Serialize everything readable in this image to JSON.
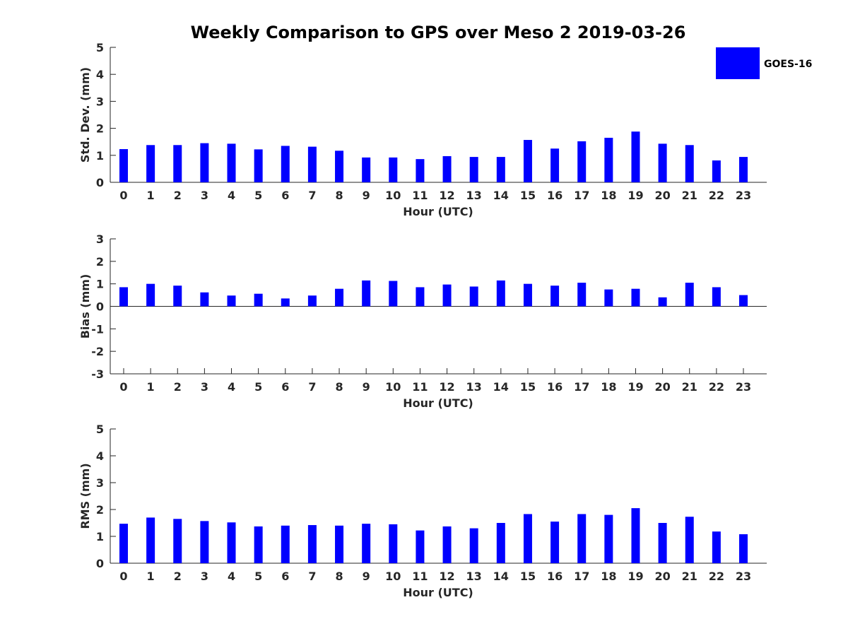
{
  "title": "Weekly Comparison to GPS over Meso 2 2019-03-26",
  "legend": {
    "label": "GOES-16",
    "color": "#0000ff",
    "position": "top-right"
  },
  "chart_data": [
    {
      "type": "bar",
      "series": [
        {
          "name": "GOES-16",
          "values": [
            1.23,
            1.38,
            1.38,
            1.45,
            1.43,
            1.22,
            1.35,
            1.32,
            1.17,
            0.92,
            0.92,
            0.86,
            0.97,
            0.94,
            0.94,
            1.57,
            1.25,
            1.52,
            1.65,
            1.88,
            1.43,
            1.38,
            0.81,
            0.94
          ]
        }
      ],
      "categories": [
        "0",
        "1",
        "2",
        "3",
        "4",
        "5",
        "6",
        "7",
        "8",
        "9",
        "10",
        "11",
        "12",
        "13",
        "14",
        "15",
        "16",
        "17",
        "18",
        "19",
        "20",
        "21",
        "22",
        "23"
      ],
      "xlabel": "Hour (UTC)",
      "ylabel": "Std. Dev. (mm)",
      "ylim": [
        0,
        5
      ],
      "yticks": [
        "0",
        "1",
        "2",
        "3",
        "4",
        "5"
      ],
      "color": "#0000ff"
    },
    {
      "type": "bar",
      "series": [
        {
          "name": "GOES-16",
          "values": [
            0.85,
            1.0,
            0.92,
            0.62,
            0.48,
            0.56,
            0.35,
            0.48,
            0.78,
            1.15,
            1.13,
            0.85,
            0.97,
            0.88,
            1.15,
            1.0,
            0.92,
            1.05,
            0.75,
            0.78,
            0.4,
            1.05,
            0.85,
            0.5
          ]
        }
      ],
      "categories": [
        "0",
        "1",
        "2",
        "3",
        "4",
        "5",
        "6",
        "7",
        "8",
        "9",
        "10",
        "11",
        "12",
        "13",
        "14",
        "15",
        "16",
        "17",
        "18",
        "19",
        "20",
        "21",
        "22",
        "23"
      ],
      "xlabel": "Hour (UTC)",
      "ylabel": "Bias (mm)",
      "ylim": [
        -3,
        3
      ],
      "yticks": [
        "-3",
        "-2",
        "-1",
        "0",
        "1",
        "2",
        "3"
      ],
      "color": "#0000ff"
    },
    {
      "type": "bar",
      "series": [
        {
          "name": "GOES-16",
          "values": [
            1.47,
            1.7,
            1.65,
            1.57,
            1.52,
            1.37,
            1.4,
            1.42,
            1.4,
            1.47,
            1.45,
            1.22,
            1.37,
            1.3,
            1.5,
            1.83,
            1.55,
            1.83,
            1.8,
            2.05,
            1.5,
            1.73,
            1.18,
            1.08
          ]
        }
      ],
      "categories": [
        "0",
        "1",
        "2",
        "3",
        "4",
        "5",
        "6",
        "7",
        "8",
        "9",
        "10",
        "11",
        "12",
        "13",
        "14",
        "15",
        "16",
        "17",
        "18",
        "19",
        "20",
        "21",
        "22",
        "23"
      ],
      "xlabel": "Hour (UTC)",
      "ylabel": "RMS (mm)",
      "ylim": [
        0,
        5
      ],
      "yticks": [
        "0",
        "1",
        "2",
        "3",
        "4",
        "5"
      ],
      "color": "#0000ff"
    }
  ]
}
